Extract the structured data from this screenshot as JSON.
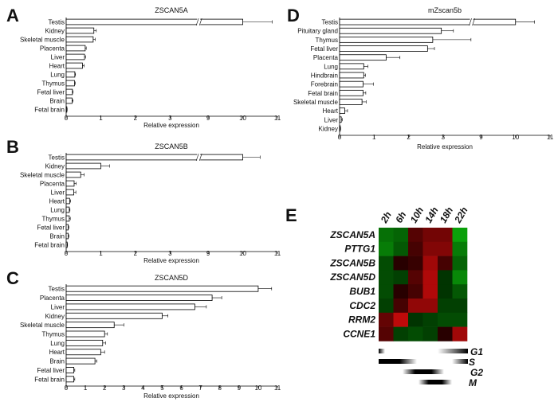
{
  "chart_data": [
    {
      "id": "A",
      "panel_label": "A",
      "type": "bar",
      "orientation": "horizontal",
      "title": "ZSCAN5A",
      "xlabel": "Relative expression",
      "categories": [
        "Testis",
        "Kidney",
        "Skeletal muscle",
        "Placenta",
        "Liver",
        "Heart",
        "Lung",
        "Thymus",
        "Fetal liver",
        "Brain",
        "Fetal brain"
      ],
      "values": [
        10,
        0.8,
        0.78,
        0.55,
        0.53,
        0.47,
        0.25,
        0.24,
        0.18,
        0.17,
        0.02
      ],
      "errors": [
        0.85,
        0.07,
        0.06,
        0.03,
        0.03,
        0.05,
        0.02,
        0.02,
        0.02,
        0.03,
        0.01
      ],
      "axis_break": [
        3.8,
        8.8
      ],
      "xticks": [
        "0",
        "1",
        "2",
        "3",
        "9",
        "10",
        "11"
      ]
    },
    {
      "id": "B",
      "panel_label": "B",
      "type": "bar",
      "orientation": "horizontal",
      "title": "ZSCAN5B",
      "xlabel": "Relative expression",
      "categories": [
        "Testis",
        "Kidney",
        "Skeletal muscle",
        "Placenta",
        "Liver",
        "Heart",
        "Lung",
        "Thymus",
        "Fetal liver",
        "Brain",
        "Fetal brain"
      ],
      "values": [
        10,
        1.0,
        0.42,
        0.23,
        0.22,
        0.1,
        0.09,
        0.09,
        0.06,
        0.06,
        0.03
      ],
      "errors": [
        0.5,
        0.25,
        0.1,
        0.06,
        0.06,
        0.03,
        0.02,
        0.03,
        0.02,
        0.02,
        0.01
      ],
      "axis_break": [
        3.8,
        8.8
      ],
      "xticks": [
        "0",
        "1",
        "2",
        "3",
        "9",
        "10",
        "11"
      ]
    },
    {
      "id": "C",
      "panel_label": "C",
      "type": "bar",
      "orientation": "horizontal",
      "title": "ZSCAN5D",
      "xlabel": "Relative expression",
      "categories": [
        "Testis",
        "Placenta",
        "Liver",
        "Kidney",
        "Skeletal muscle",
        "Thymus",
        "Lung",
        "Heart",
        "Brain",
        "Fetal liver",
        "Fetal brain"
      ],
      "values": [
        10,
        7.6,
        6.7,
        5.0,
        2.5,
        2.0,
        1.9,
        1.8,
        1.5,
        0.4,
        0.4
      ],
      "errors": [
        0.7,
        0.5,
        0.6,
        0.3,
        0.5,
        0.15,
        0.15,
        0.2,
        0.1,
        0.05,
        0.05
      ],
      "xlim": [
        0,
        11
      ],
      "xticks": [
        "0",
        "1",
        "2",
        "3",
        "4",
        "5",
        "6",
        "7",
        "8",
        "9",
        "10",
        "11"
      ]
    },
    {
      "id": "D",
      "panel_label": "D",
      "type": "bar",
      "orientation": "horizontal",
      "title": "mZscan5b",
      "xlabel": "Relative expression",
      "categories": [
        "Testis",
        "Pituitary gland",
        "Thymus",
        "Fetal liver",
        "Placenta",
        "Lung",
        "Hindbrain",
        "Forebrain",
        "Fetal brain",
        "Skeletal muscle",
        "Heart",
        "Liver",
        "Kidney"
      ],
      "values": [
        10,
        2.95,
        2.7,
        2.55,
        1.35,
        0.7,
        0.7,
        0.68,
        0.68,
        0.65,
        0.15,
        0.05,
        0.02
      ],
      "errors": [
        0.55,
        0.35,
        1.55,
        0.2,
        0.4,
        0.12,
        0.05,
        0.3,
        0.08,
        0.12,
        0.08,
        0.03,
        0.01
      ],
      "axis_break": [
        3.8,
        8.8
      ],
      "xticks": [
        "0",
        "1",
        "2",
        "3",
        "9",
        "10",
        "11"
      ]
    },
    {
      "id": "E",
      "panel_label": "E",
      "type": "heatmap",
      "columns": [
        "2h",
        "6h",
        "10h",
        "14h",
        "18h",
        "22h"
      ],
      "rows": [
        "ZSCAN5A",
        "PTTG1",
        "ZSCAN5B",
        "ZSCAN5D",
        "BUB1",
        "CDC2",
        "RRM2",
        "CCNE1"
      ],
      "values": [
        [
          -0.6,
          -0.5,
          0.3,
          0.5,
          0.5,
          -1.0
        ],
        [
          -0.7,
          -0.4,
          0.2,
          0.6,
          0.6,
          -0.7
        ],
        [
          -0.3,
          0.0,
          0.1,
          0.8,
          0.2,
          -0.5
        ],
        [
          -0.3,
          -0.2,
          0.3,
          0.9,
          -0.1,
          -0.8
        ],
        [
          -0.3,
          0.0,
          0.2,
          0.9,
          -0.1,
          -0.4
        ],
        [
          -0.2,
          0.2,
          0.7,
          0.7,
          -0.2,
          -0.2
        ],
        [
          0.4,
          1.0,
          -0.1,
          -0.2,
          -0.3,
          -0.3
        ],
        [
          0.3,
          -0.2,
          -0.3,
          -0.2,
          0.0,
          0.8
        ]
      ],
      "colors": {
        "positive": "#cc0000",
        "negative": "#00aa00",
        "zero": "#000000"
      },
      "phases": [
        {
          "name": "G1"
        },
        {
          "name": "S"
        },
        {
          "name": "G2"
        },
        {
          "name": "M"
        }
      ]
    }
  ]
}
